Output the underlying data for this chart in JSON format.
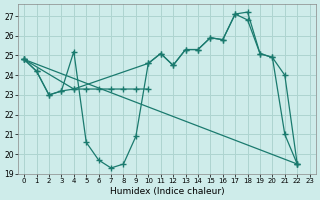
{
  "xlabel": "Humidex (Indice chaleur)",
  "background_color": "#ceecea",
  "grid_color": "#aed4d0",
  "line_color": "#1a7a6e",
  "xlim": [
    -0.5,
    23.5
  ],
  "ylim": [
    19,
    27.6
  ],
  "yticks": [
    19,
    20,
    21,
    22,
    23,
    24,
    25,
    26,
    27
  ],
  "xticks": [
    0,
    1,
    2,
    3,
    4,
    5,
    6,
    7,
    8,
    9,
    10,
    11,
    12,
    13,
    14,
    15,
    16,
    17,
    18,
    19,
    20,
    21,
    22,
    23
  ],
  "line1_x": [
    0,
    1,
    2,
    3,
    4,
    5,
    6,
    7,
    8,
    9,
    10,
    11,
    12,
    13,
    14,
    15,
    16,
    17,
    18,
    19,
    20,
    21,
    22
  ],
  "line1_y": [
    24.8,
    24.2,
    23.0,
    23.2,
    25.2,
    20.6,
    19.7,
    19.3,
    19.5,
    20.9,
    24.6,
    25.1,
    24.5,
    25.3,
    25.3,
    25.9,
    25.8,
    27.1,
    27.2,
    25.1,
    24.9,
    21.0,
    19.5
  ],
  "line2_x": [
    0,
    1,
    2,
    3,
    4,
    5,
    6,
    7,
    8,
    9,
    10
  ],
  "line2_y": [
    24.8,
    24.2,
    23.0,
    23.2,
    23.3,
    23.3,
    23.3,
    23.3,
    23.3,
    23.3,
    23.3
  ],
  "line3_x": [
    0,
    22
  ],
  "line3_y": [
    24.8,
    19.5
  ],
  "line4_x": [
    0,
    4,
    10,
    11,
    12,
    13,
    14,
    15,
    16,
    17,
    18,
    19,
    20,
    21,
    22
  ],
  "line4_y": [
    24.8,
    23.3,
    24.6,
    25.1,
    24.5,
    25.3,
    25.3,
    25.9,
    25.8,
    27.1,
    26.8,
    25.1,
    24.9,
    24.0,
    19.5
  ]
}
